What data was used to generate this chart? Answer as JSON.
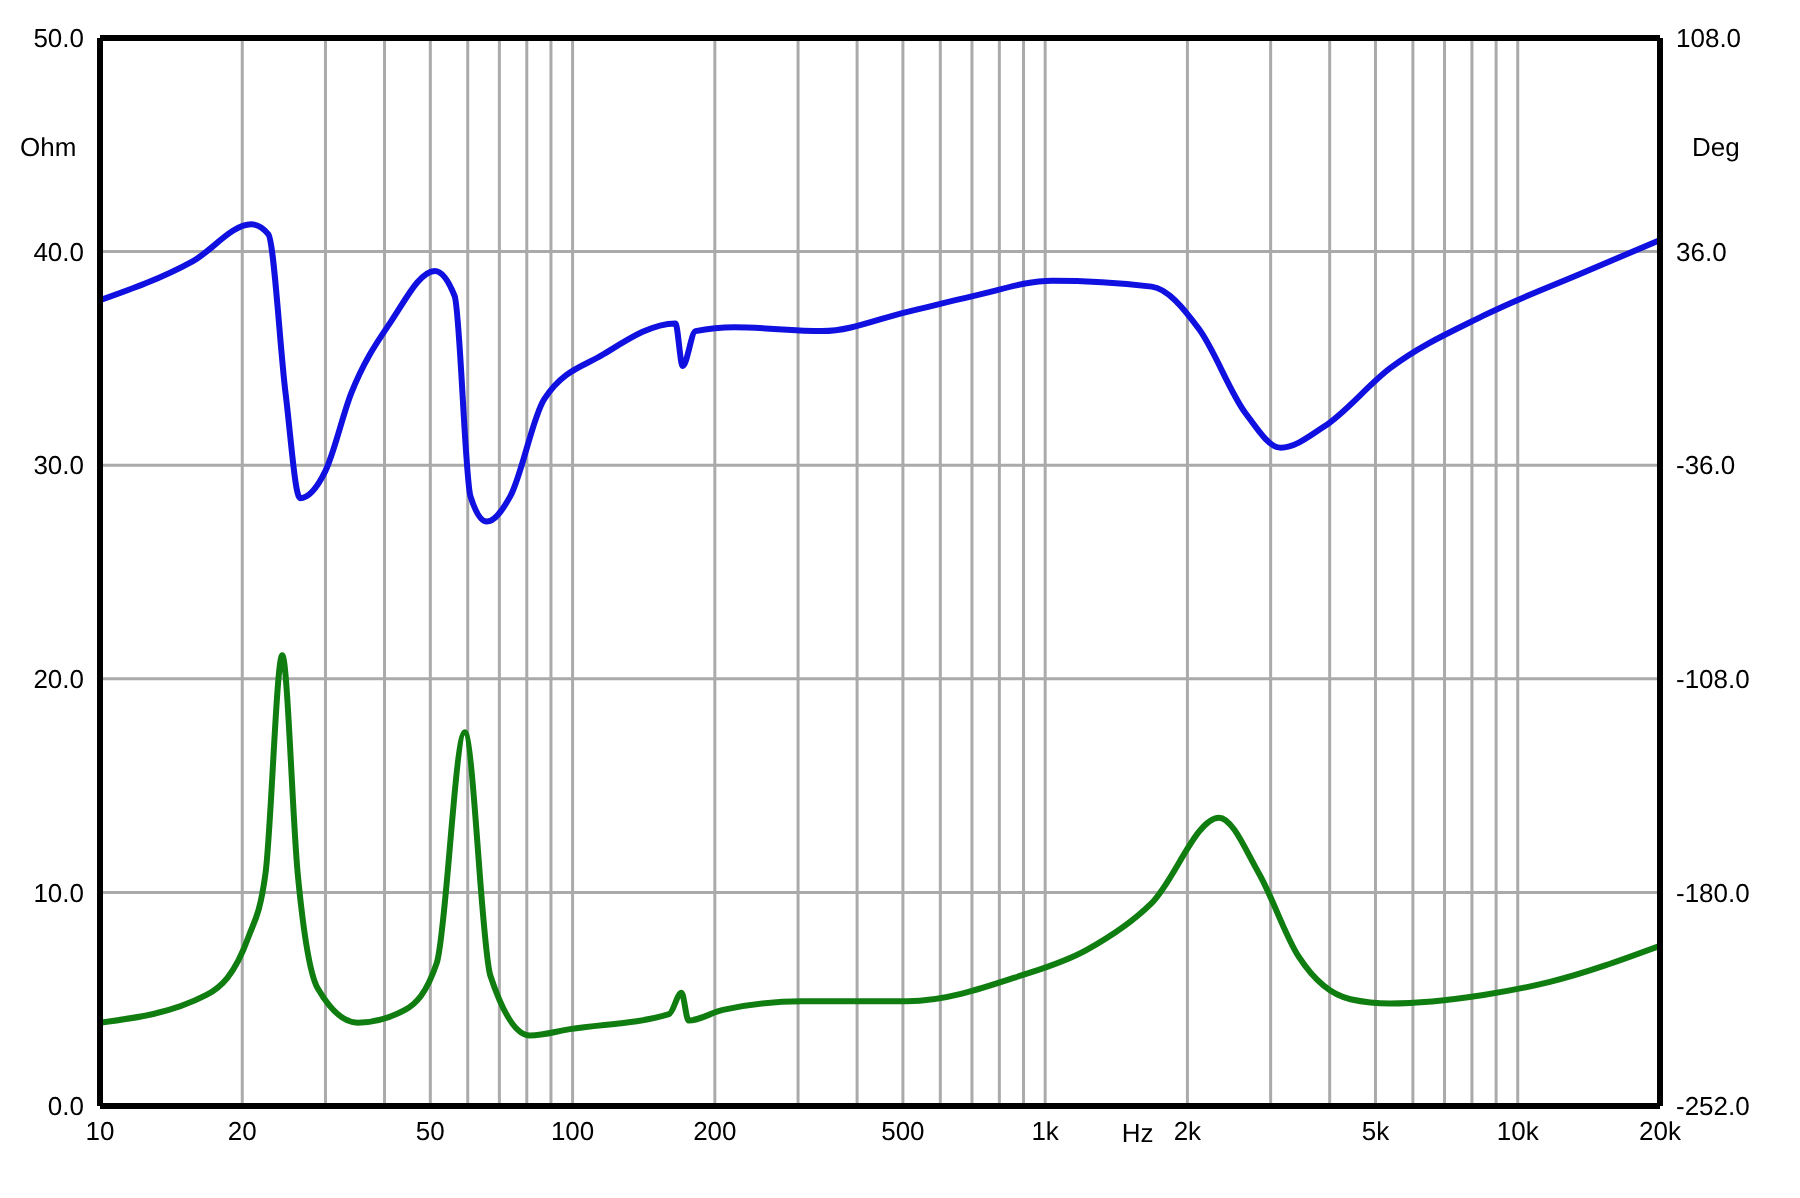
{
  "chart_data": {
    "type": "line",
    "xlabel": "Hz",
    "ylabel": "Ohm",
    "y2label": "Deg",
    "log": "x",
    "grid": true,
    "marker": "none",
    "line_style": "solid",
    "xlim": [
      10,
      20000
    ],
    "xticks": [
      10,
      {
        "value": 20,
        "label": "20"
      },
      {
        "value": 30,
        "label": null
      },
      {
        "value": 40,
        "label": null
      },
      {
        "value": 50,
        "label": "50"
      },
      {
        "value": 60,
        "label": null
      },
      {
        "value": 70,
        "label": null
      },
      {
        "value": 80,
        "label": null
      },
      {
        "value": 90,
        "label": null
      },
      100,
      {
        "value": 200,
        "label": "200"
      },
      {
        "value": 300,
        "label": null
      },
      {
        "value": 400,
        "label": null
      },
      {
        "value": 500,
        "label": "500"
      },
      {
        "value": 600,
        "label": null
      },
      {
        "value": 700,
        "label": null
      },
      {
        "value": 800,
        "label": null
      },
      {
        "value": 900,
        "label": null
      },
      {
        "value": 1000,
        "label": "1k"
      },
      {
        "value": 2000,
        "label": "2k"
      },
      {
        "value": 3000,
        "label": null
      },
      {
        "value": 4000,
        "label": null
      },
      {
        "value": 5000,
        "label": "5k"
      },
      {
        "value": 6000,
        "label": null
      },
      {
        "value": 7000,
        "label": null
      },
      {
        "value": 8000,
        "label": null
      },
      {
        "value": 9000,
        "label": null
      },
      {
        "value": 10000,
        "label": "10k"
      },
      {
        "value": 20000,
        "label": "20k"
      }
    ],
    "ylim": [
      0,
      50
    ],
    "yticks": [
      {
        "value": 0,
        "label": "0.0"
      },
      {
        "value": 10,
        "label": "10.0"
      },
      {
        "value": 20,
        "label": "20.0"
      },
      {
        "value": 30,
        "label": "30.0"
      },
      {
        "value": 40,
        "label": "40.0"
      },
      {
        "value": 50,
        "label": "50.0"
      }
    ],
    "y2lim": [
      -252,
      108
    ],
    "y2ticks": [
      {
        "value": -252,
        "label": "-252.0"
      },
      {
        "value": -180,
        "label": "-180.0"
      },
      {
        "value": -108,
        "label": "-108.0"
      },
      {
        "value": -36,
        "label": "-36.0"
      },
      {
        "value": 36,
        "label": "36.0"
      },
      {
        "value": 108,
        "label": "108.0"
      }
    ],
    "series": [
      {
        "color": "#107d10",
        "x": [
          10,
          16.8,
          20.6,
          22.4,
          24.3,
          26.2,
          28.9,
          35.1,
          44.2,
          51.6,
          59.1,
          67,
          81.3,
          98.7,
          160,
          170,
          176,
          208,
          306,
          511,
          887,
          1222,
          1680,
          2333,
          2832,
          3437,
          4425,
          5370,
          8460,
          11640,
          20000
        ],
        "values": [
          3.9,
          5.2,
          7.9,
          10.9,
          21.1,
          10.9,
          5.5,
          3.9,
          4.5,
          6.7,
          17.5,
          6.1,
          3.3,
          3.6,
          4.3,
          5.3,
          4.0,
          4.5,
          4.9,
          4.9,
          6.1,
          7.3,
          9.5,
          13.5,
          10.9,
          7.0,
          5.0,
          4.8,
          5.2,
          5.8,
          7.5
        ]
      },
      {
        "color": "#1010e0",
        "axis": "y2",
        "x": [
          10,
          15.7,
          20.9,
          22.7,
          24.7,
          26.5,
          30,
          34,
          41.3,
          51.1,
          56.3,
          60.8,
          65.8,
          73.8,
          87.1,
          116,
          165,
          171,
          182,
          220,
          337,
          511,
          703,
          1035,
          1680,
          2118,
          2650,
          3150,
          3900,
          5370,
          8460,
          13700,
          20000
        ],
        "values": [
          19.6,
          32.7,
          45.2,
          41.9,
          -11.8,
          -47.1,
          -37.9,
          -11.8,
          12.5,
          29.5,
          21,
          -46.5,
          -55,
          -46.5,
          -13.7,
          1.3,
          11.8,
          -2.6,
          9.2,
          10.5,
          9.2,
          15.7,
          21,
          26.2,
          24.2,
          9.8,
          -18.3,
          -30.1,
          -22.9,
          -3.3,
          14.4,
          28.8,
          39.9
        ]
      }
    ]
  }
}
